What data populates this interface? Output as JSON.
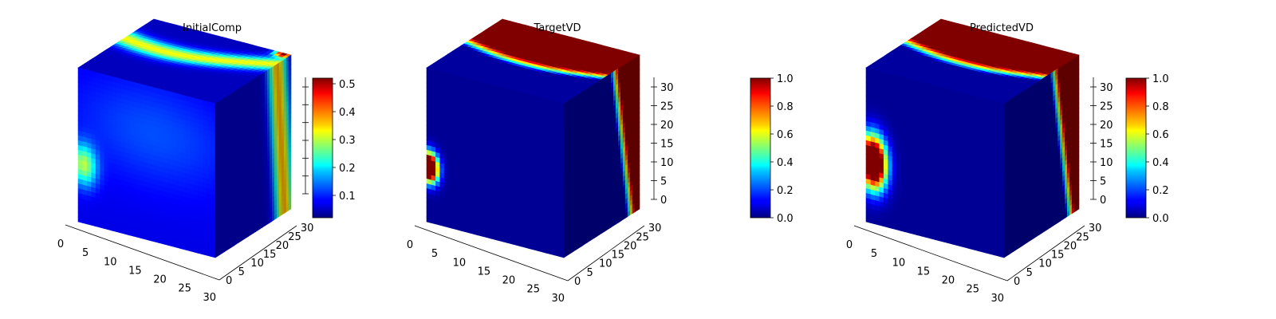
{
  "chart_data": [
    {
      "type": "voxel-3d",
      "title": "InitialComp",
      "x": {
        "range": [
          0,
          31
        ],
        "ticks": [
          0,
          5,
          10,
          15,
          20,
          25,
          30
        ]
      },
      "y": {
        "range": [
          0,
          31
        ],
        "ticks": [
          0,
          5,
          10,
          15,
          20,
          25,
          30
        ]
      },
      "z": {
        "range": [
          0,
          31
        ],
        "ticks": []
      },
      "colorbar": {
        "colormap": "jet",
        "range": [
          0.02,
          0.52
        ],
        "ticks": [
          "0.1",
          "0.2",
          "0.3",
          "0.4",
          "0.5"
        ],
        "tick_values": [
          0.1,
          0.2,
          0.3,
          0.4,
          0.5
        ]
      },
      "faces": {
        "top": {
          "base_value": 0.05,
          "features": "green band along far edge (~0.3) with small red spot at back corner (~0.5)"
        },
        "front": {
          "base_value": 0.07,
          "features": "bright patch near left middle (~0.3)"
        },
        "side": {
          "base_value": 0.05,
          "features": "green-yellow band along far edge (~0.3-0.4)"
        }
      }
    },
    {
      "type": "voxel-3d",
      "title": "TargetVD",
      "x": {
        "range": [
          0,
          31
        ],
        "ticks": [
          0,
          5,
          10,
          15,
          20,
          25,
          30
        ]
      },
      "y": {
        "range": [
          0,
          31
        ],
        "ticks": [
          0,
          5,
          10,
          15,
          20,
          25,
          30
        ]
      },
      "z": {
        "range": [
          0,
          31
        ],
        "ticks": [
          0,
          5,
          10,
          15,
          20,
          25,
          30
        ]
      },
      "colorbar": {
        "colormap": "jet",
        "range": [
          0.0,
          1.0
        ],
        "ticks": [
          "0.0",
          "0.2",
          "0.4",
          "0.6",
          "0.8",
          "1.0"
        ],
        "tick_values": [
          0.0,
          0.2,
          0.4,
          0.6,
          0.8,
          1.0
        ]
      },
      "faces": {
        "top": {
          "base_value": 0.05,
          "features": "dark red region (~1.0) over the back half"
        },
        "front": {
          "base_value": 0.02,
          "features": "red blob (~1.0) at left middle"
        },
        "side": {
          "base_value": 0.02,
          "features": "dark red region (~1.0) near the far edge"
        }
      }
    },
    {
      "type": "voxel-3d",
      "title": "PredictedVD",
      "x": {
        "range": [
          0,
          31
        ],
        "ticks": [
          0,
          5,
          10,
          15,
          20,
          25,
          30
        ]
      },
      "y": {
        "range": [
          0,
          31
        ],
        "ticks": [
          0,
          5,
          10,
          15,
          20,
          25,
          30
        ]
      },
      "z": {
        "range": [
          0,
          31
        ],
        "ticks": [
          0,
          5,
          10,
          15,
          20,
          25,
          30
        ]
      },
      "colorbar": {
        "colormap": "jet",
        "range": [
          0.0,
          1.0
        ],
        "ticks": [
          "0.0",
          "0.2",
          "0.4",
          "0.6",
          "0.8",
          "1.0"
        ],
        "tick_values": [
          0.0,
          0.2,
          0.4,
          0.6,
          0.8,
          1.0
        ]
      },
      "faces": {
        "top": {
          "base_value": 0.05,
          "features": "dark red region (~1.0) over the back half"
        },
        "front": {
          "base_value": 0.02,
          "features": "larger elongated red blob (~1.0) at left middle"
        },
        "side": {
          "base_value": 0.02,
          "features": "dark red region (~1.0) near the far edge"
        }
      }
    }
  ]
}
